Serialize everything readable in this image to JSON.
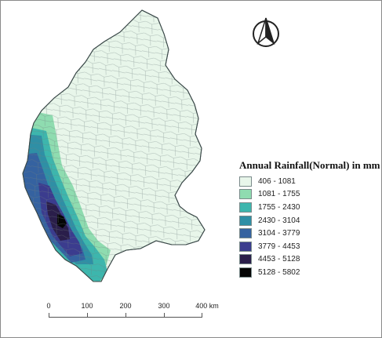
{
  "legend": {
    "title": "Annual Rainfall(Normal) in mm",
    "classes": [
      {
        "label": "406 - 1081",
        "color": "#e8f6ea"
      },
      {
        "label": "1081 - 1755",
        "color": "#8fdcb0"
      },
      {
        "label": "1755 - 2430",
        "color": "#3db6ad"
      },
      {
        "label": "2430 - 3104",
        "color": "#2f8fa5"
      },
      {
        "label": "3104 - 3779",
        "color": "#3562a0"
      },
      {
        "label": "3779 - 4453",
        "color": "#3b3c8e"
      },
      {
        "label": "4453 - 5128",
        "color": "#2a1e4a"
      },
      {
        "label": "5128 - 5802",
        "color": "#050505"
      }
    ]
  },
  "scale_bar": {
    "labels": [
      "0",
      "100",
      "200",
      "300",
      "400 km"
    ]
  },
  "north_arrow": {
    "icon": "north-arrow-icon"
  },
  "map": {
    "region_fill": "#e8f6ea",
    "boundary_color": "#5a6a6a"
  }
}
